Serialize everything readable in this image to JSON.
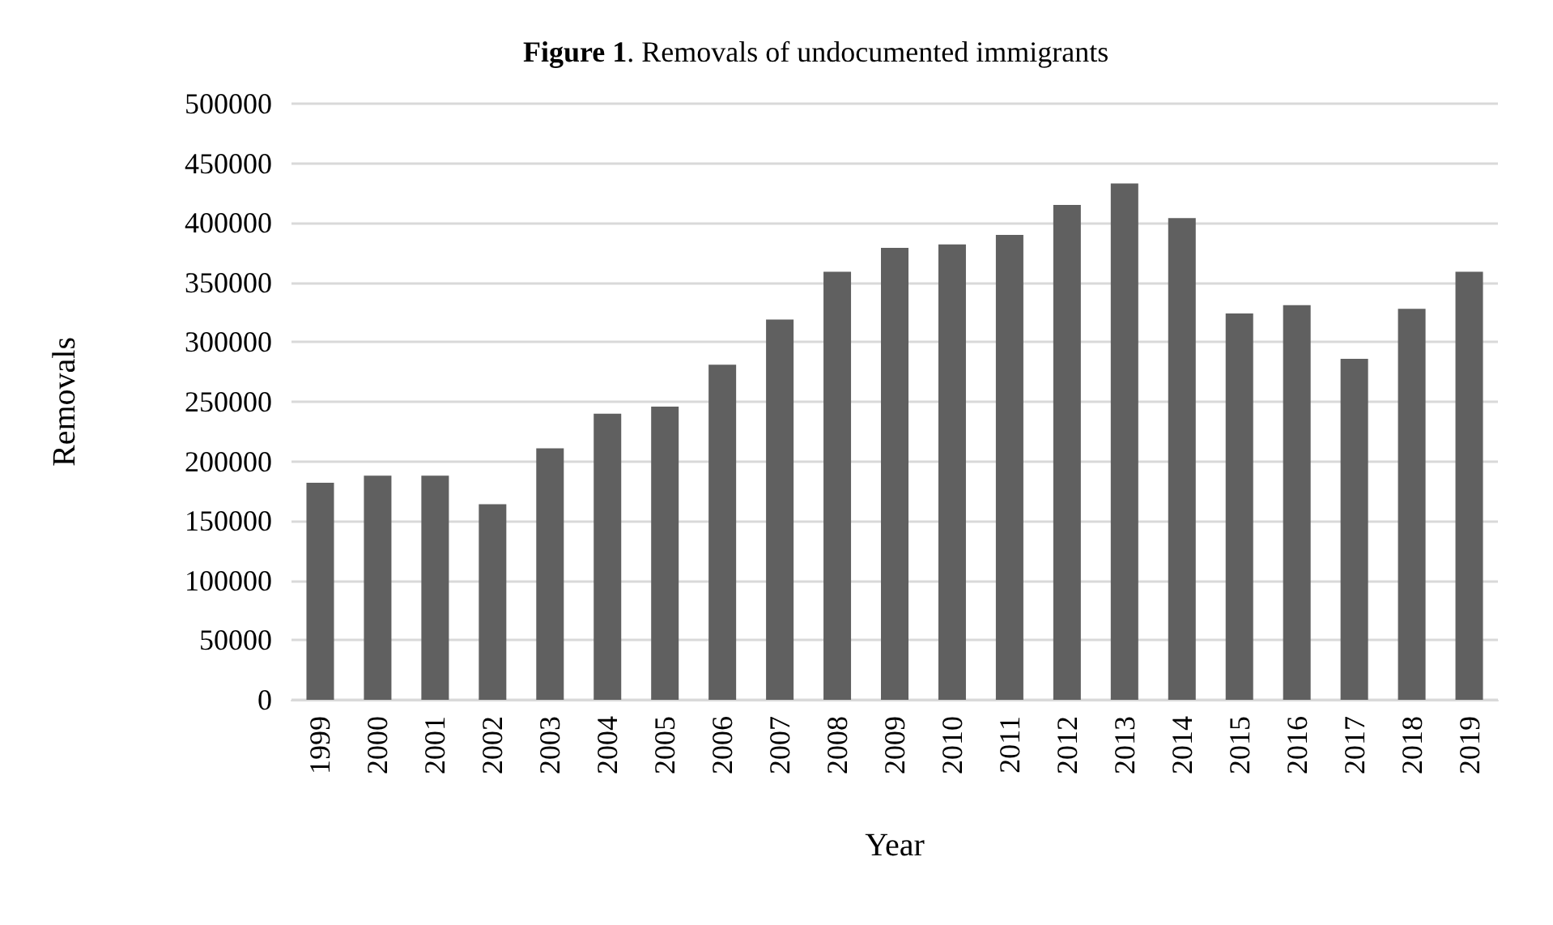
{
  "chart_data": {
    "type": "bar",
    "title": "Figure 1. Removals of undocumented immigrants",
    "xlabel": "Year",
    "ylabel": "Removals",
    "categories": [
      "1999",
      "2000",
      "2001",
      "2002",
      "2003",
      "2004",
      "2005",
      "2006",
      "2007",
      "2008",
      "2009",
      "2010",
      "2011",
      "2012",
      "2013",
      "2014",
      "2015",
      "2016",
      "2017",
      "2018",
      "2019"
    ],
    "values": [
      182000,
      188000,
      188000,
      164000,
      211000,
      240000,
      246000,
      281000,
      319000,
      359000,
      379000,
      382000,
      390000,
      415000,
      433000,
      404000,
      324000,
      331000,
      286000,
      328000,
      359000
    ],
    "color": "#606060",
    "ylim": [
      0,
      500000
    ],
    "yticks": [
      0,
      50000,
      100000,
      150000,
      200000,
      250000,
      300000,
      350000,
      400000,
      450000,
      500000
    ],
    "grid": "y"
  }
}
